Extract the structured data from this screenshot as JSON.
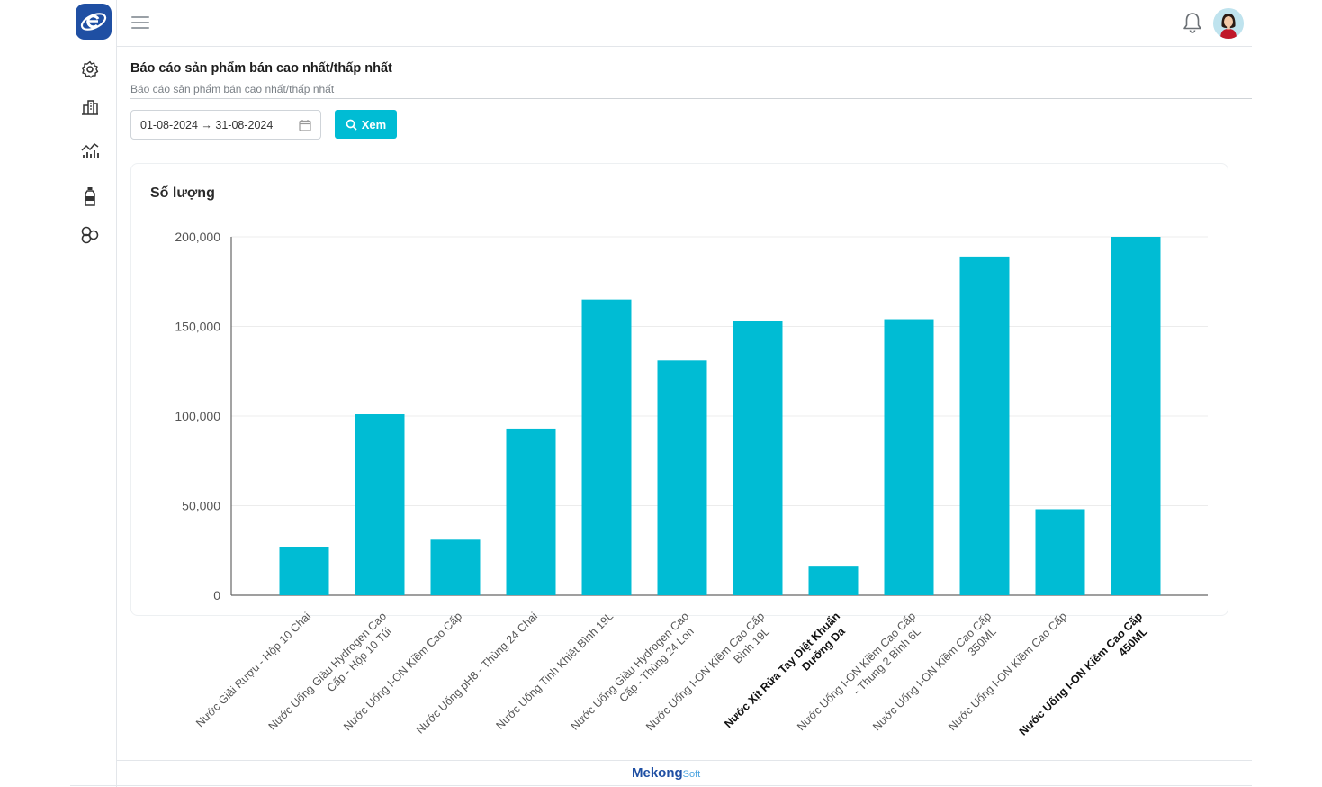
{
  "header": {
    "menu_icon": "hamburger-icon",
    "notification_icon": "bell-icon",
    "avatar": "user-avatar"
  },
  "sidebar": {
    "logo": "e-logo",
    "items": [
      {
        "icon": "settings-icon"
      },
      {
        "icon": "report-buildings-icon"
      },
      {
        "icon": "analytics-chart-icon"
      },
      {
        "icon": "bottle-icon"
      },
      {
        "icon": "shapes-icon"
      }
    ]
  },
  "page": {
    "title": "Báo cáo sản phẩm bán cao nhất/thấp nhất",
    "subtitle": "Báo cáo sản phẩm bán cao nhất/thấp nhất"
  },
  "filter": {
    "date_range": "01-08-2024 → 31-08-2024",
    "view_button": "Xem"
  },
  "chart_card": {
    "title": "Số lượng"
  },
  "chart_data": {
    "type": "bar",
    "color": "#00bcd4",
    "ylim": [
      0,
      200000
    ],
    "yticks": [
      0,
      50000,
      100000,
      150000,
      200000
    ],
    "ytick_labels": [
      "0",
      "50,000",
      "100,000",
      "150,000",
      "200,000"
    ],
    "grid": true,
    "categories": [
      [
        "Nước Giải Rượu  - Hộp 10 Chai"
      ],
      [
        "Nước Uống  Giàu Hydrogen Cao",
        "Cấp - Hộp 10 Túi"
      ],
      [
        "Nước Uống I-ON Kiềm Cao Cấp"
      ],
      [
        "Nước Uống pH8 - Thùng 24 Chai"
      ],
      [
        "Nước Uống Tinh Khiết  Bình 19L"
      ],
      [
        "Nước Uống Giàu Hydrogen Cao",
        "Cấp - Thùng 24 Lon"
      ],
      [
        "Nước Uống I-ON Kiềm Cao Cấp",
        "Bình 19L"
      ],
      [
        "Nước Xịt Rửa Tay Diệt Khuẩn",
        "Dưỡng Da"
      ],
      [
        "Nước Uống I-ON Kiềm Cao Cấp",
        "- Thùng 2 Bình 6L"
      ],
      [
        "Nước Uống I-ON Kiềm Cao Cấp",
        "350ML"
      ],
      [
        "Nước Uống I-ON Kiềm Cao Cấp"
      ],
      [
        "Nước Uống I-ON Kiềm Cao Cấp",
        "450ML"
      ]
    ],
    "bold_categories": [
      7,
      11
    ],
    "values": [
      27000,
      101000,
      31000,
      93000,
      165000,
      131000,
      153000,
      16000,
      154000,
      189000,
      48000,
      200000
    ]
  },
  "footer": {
    "brand_main": "Mekong",
    "brand_soft": "Soft"
  }
}
